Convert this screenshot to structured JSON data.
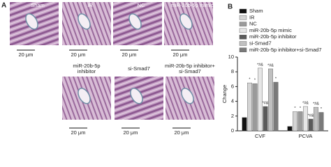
{
  "panel_a": {
    "label": "A",
    "scale_bar": "20 μm",
    "top_row": [
      "Sham",
      "IR",
      "NC",
      "miR-20b-5p mimic"
    ],
    "bottom_row": [
      [
        "miR-20b-5p",
        "inhibitor"
      ],
      [
        "si-Smad7"
      ],
      [
        "miR-20b-5p inhibitor+",
        "si-Smad7"
      ]
    ]
  },
  "chart_data": {
    "type": "bar",
    "panel_label": "B",
    "ylabel": "Change",
    "categories": [
      "CVF",
      "PCVA"
    ],
    "ylim": [
      0,
      10
    ],
    "yticks": [
      0,
      2,
      4,
      6,
      8,
      10
    ],
    "series": [
      {
        "name": "Sham",
        "color": "#111111",
        "values": [
          1.8,
          0.6
        ],
        "markers": [
          null,
          null
        ]
      },
      {
        "name": "IR",
        "color": "#d4d4d4",
        "values": [
          6.5,
          2.6
        ],
        "markers": [
          "*",
          "*"
        ]
      },
      {
        "name": "NC",
        "color": "#9a9a9a",
        "values": [
          6.4,
          2.6
        ],
        "markers": [
          "*",
          "*"
        ]
      },
      {
        "name": "miR-20b-5p mimic",
        "color": "#e6e6e6",
        "values": [
          8.5,
          3.3
        ],
        "markers": [
          "*#&",
          "*#&"
        ]
      },
      {
        "name": "miR-20b-5p inhibitor",
        "color": "#5a5a5a",
        "values": [
          3.3,
          1.6
        ],
        "markers": [
          "*#&",
          "*#&"
        ]
      },
      {
        "name": "si-Smad7",
        "color": "#c0c0c0",
        "values": [
          8.4,
          3.2
        ],
        "markers": [
          "*#&",
          "*#&"
        ]
      },
      {
        "name": "miR-20b-5p inhibitor+si-Smad7",
        "color": "#7a7a7a",
        "values": [
          6.6,
          2.5
        ],
        "markers": [
          "*",
          "*"
        ]
      }
    ]
  }
}
